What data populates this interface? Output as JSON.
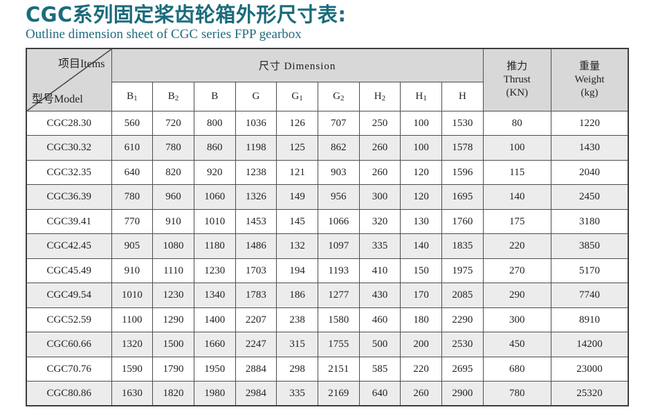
{
  "page": {
    "title": "CGC系列固定桨齿轮箱外形尺寸表:",
    "subtitle": "Outline dimension sheet of CGC series FPP gearbox"
  },
  "colors": {
    "accent_teal": "#1a6b7b",
    "header_gray": "#d8d8d8",
    "stripe_gray": "#ececec",
    "border": "#4d4d4d"
  },
  "table": {
    "corner": {
      "top": "项目Items",
      "bottom": "型号Model"
    },
    "dimension_header": "尺寸  Dimension",
    "thrust_header": {
      "cn": "推力",
      "en": "Thrust",
      "unit": "(KN)"
    },
    "weight_header": {
      "cn": "重量",
      "en": "Weight",
      "unit": "(kg)"
    },
    "columns": [
      "B1",
      "B2",
      "B",
      "G",
      "G1",
      "G2",
      "H2",
      "H1",
      "H"
    ],
    "rows": [
      {
        "model": "CGC28.30",
        "values": [
          560,
          720,
          800,
          1036,
          126,
          707,
          250,
          100,
          1530
        ],
        "thrust": 80,
        "weight": 1220
      },
      {
        "model": "CGC30.32",
        "values": [
          610,
          780,
          860,
          1198,
          125,
          862,
          260,
          100,
          1578
        ],
        "thrust": 100,
        "weight": 1430
      },
      {
        "model": "CGC32.35",
        "values": [
          640,
          820,
          920,
          1238,
          121,
          903,
          260,
          120,
          1596
        ],
        "thrust": 115,
        "weight": 2040
      },
      {
        "model": "CGC36.39",
        "values": [
          780,
          960,
          1060,
          1326,
          149,
          956,
          300,
          120,
          1695
        ],
        "thrust": 140,
        "weight": 2450
      },
      {
        "model": "CGC39.41",
        "values": [
          770,
          910,
          1010,
          1453,
          145,
          1066,
          320,
          130,
          1760
        ],
        "thrust": 175,
        "weight": 3180
      },
      {
        "model": "CGC42.45",
        "values": [
          905,
          1080,
          1180,
          1486,
          132,
          1097,
          335,
          140,
          1835
        ],
        "thrust": 220,
        "weight": 3850
      },
      {
        "model": "CGC45.49",
        "values": [
          910,
          1110,
          1230,
          1703,
          194,
          1193,
          410,
          150,
          1975
        ],
        "thrust": 270,
        "weight": 5170
      },
      {
        "model": "CGC49.54",
        "values": [
          1010,
          1230,
          1340,
          1783,
          186,
          1277,
          430,
          170,
          2085
        ],
        "thrust": 290,
        "weight": 7740
      },
      {
        "model": "CGC52.59",
        "values": [
          1100,
          1290,
          1400,
          2207,
          238,
          1580,
          460,
          180,
          2290
        ],
        "thrust": 300,
        "weight": 8910
      },
      {
        "model": "CGC60.66",
        "values": [
          1320,
          1500,
          1660,
          2247,
          315,
          1755,
          500,
          200,
          2530
        ],
        "thrust": 450,
        "weight": 14200
      },
      {
        "model": "CGC70.76",
        "values": [
          1590,
          1790,
          1950,
          2884,
          298,
          2151,
          585,
          220,
          2695
        ],
        "thrust": 680,
        "weight": 23000
      },
      {
        "model": "CGC80.86",
        "values": [
          1630,
          1820,
          1980,
          2984,
          335,
          2169,
          640,
          260,
          2900
        ],
        "thrust": 780,
        "weight": 25320
      }
    ]
  }
}
